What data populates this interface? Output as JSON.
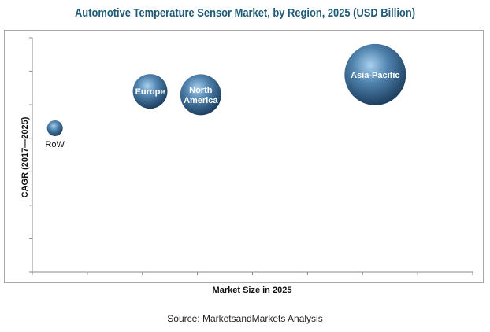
{
  "chart_data": {
    "type": "bubble",
    "title": "Automotive Temperature Sensor Market, by Region, 2025 (USD Billion)",
    "xlabel": "Market Size in 2025",
    "ylabel": "CAGR (2017—2025)",
    "xlim": [
      0,
      8
    ],
    "ylim": [
      0,
      7
    ],
    "tick_labels_shown": false,
    "grid": false,
    "bubble_color": "#3f6f99",
    "points": [
      {
        "label": "RoW",
        "x": 0.41,
        "y": 4.3,
        "size": 10
      },
      {
        "label": "Europe",
        "x": 2.14,
        "y": 5.4,
        "size": 22
      },
      {
        "label": "North America",
        "x": 3.06,
        "y": 5.3,
        "size": 26
      },
      {
        "label": "Asia-Pacific",
        "x": 6.23,
        "y": 5.9,
        "size": 39
      }
    ]
  },
  "source": "Source: MarketsandMarkets Analysis"
}
